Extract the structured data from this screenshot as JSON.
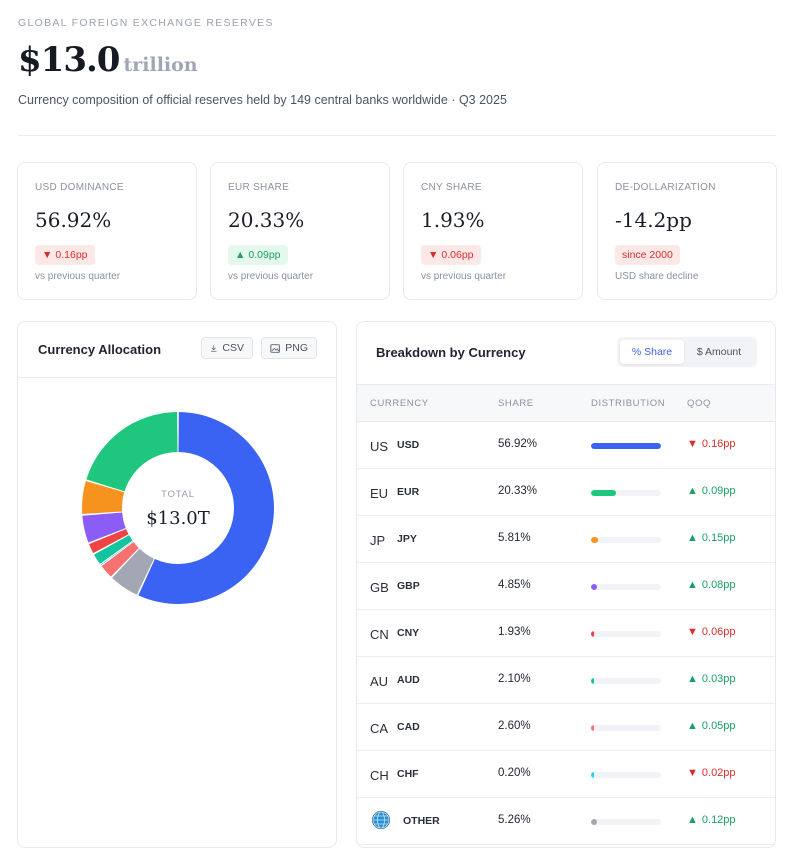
{
  "header": {
    "eyebrow": "GLOBAL FOREIGN EXCHANGE RESERVES",
    "value": "$13.0",
    "unit": "trillion",
    "subtitle": "Currency composition of official reserves held by 149 central banks worldwide · Q3 2025"
  },
  "kpis": [
    {
      "label": "USD DOMINANCE",
      "value": "56.92%",
      "badge": "0.16pp",
      "direction": "down",
      "note": "vs previous quarter"
    },
    {
      "label": "EUR SHARE",
      "value": "20.33%",
      "badge": "0.09pp",
      "direction": "up",
      "note": "vs previous quarter"
    },
    {
      "label": "CNY SHARE",
      "value": "1.93%",
      "badge": "0.06pp",
      "direction": "down",
      "note": "vs previous quarter"
    },
    {
      "label": "DE-DOLLARIZATION",
      "value": "-14.2pp",
      "badge": "since 2000",
      "direction": "neutral",
      "note": "USD share decline"
    }
  ],
  "allocation": {
    "title": "Currency Allocation",
    "csv_label": "CSV",
    "png_label": "PNG",
    "center_label": "TOTAL",
    "center_value": "$13.0T"
  },
  "chart_data": {
    "type": "pie",
    "title": "Currency Allocation",
    "categories": [
      "USD",
      "EUR",
      "JPY",
      "GBP",
      "CNY",
      "AUD",
      "CAD",
      "CHF",
      "OTHER"
    ],
    "values": [
      56.92,
      20.33,
      5.81,
      4.85,
      1.93,
      2.1,
      2.6,
      0.2,
      5.26
    ],
    "colors": [
      "#3b63f3",
      "#1fc77e",
      "#f5931e",
      "#8b5cf6",
      "#ef4444",
      "#14c4a0",
      "#f87171",
      "#22d3ee",
      "#a3a7b4"
    ],
    "center_label": "TOTAL",
    "center_value": "$13.0T"
  },
  "breakdown": {
    "title": "Breakdown by Currency",
    "toggle_share": "% Share",
    "toggle_amount": "$ Amount",
    "columns": [
      "CURRENCY",
      "SHARE",
      "DISTRIBUTION",
      "QOQ"
    ],
    "rows": [
      {
        "flag": "US",
        "code": "USD",
        "share": "56.92%",
        "pct": 56.92,
        "color": "#3b63f3",
        "qoq": "0.16pp",
        "dir": "down"
      },
      {
        "flag": "EU",
        "code": "EUR",
        "share": "20.33%",
        "pct": 20.33,
        "color": "#1fc77e",
        "qoq": "0.09pp",
        "dir": "up"
      },
      {
        "flag": "JP",
        "code": "JPY",
        "share": "5.81%",
        "pct": 5.81,
        "color": "#f5931e",
        "qoq": "0.15pp",
        "dir": "up"
      },
      {
        "flag": "GB",
        "code": "GBP",
        "share": "4.85%",
        "pct": 4.85,
        "color": "#8b5cf6",
        "qoq": "0.08pp",
        "dir": "up"
      },
      {
        "flag": "CN",
        "code": "CNY",
        "share": "1.93%",
        "pct": 1.93,
        "color": "#ef4444",
        "qoq": "0.06pp",
        "dir": "down"
      },
      {
        "flag": "AU",
        "code": "AUD",
        "share": "2.10%",
        "pct": 2.1,
        "color": "#14c4a0",
        "qoq": "0.03pp",
        "dir": "up"
      },
      {
        "flag": "CA",
        "code": "CAD",
        "share": "2.60%",
        "pct": 2.6,
        "color": "#f87171",
        "qoq": "0.05pp",
        "dir": "up"
      },
      {
        "flag": "CH",
        "code": "CHF",
        "share": "0.20%",
        "pct": 0.2,
        "color": "#22d3ee",
        "qoq": "0.02pp",
        "dir": "down"
      },
      {
        "flag": "",
        "code": "OTHER",
        "share": "5.26%",
        "pct": 5.26,
        "color": "#a3a7b4",
        "qoq": "0.12pp",
        "dir": "up"
      }
    ]
  }
}
